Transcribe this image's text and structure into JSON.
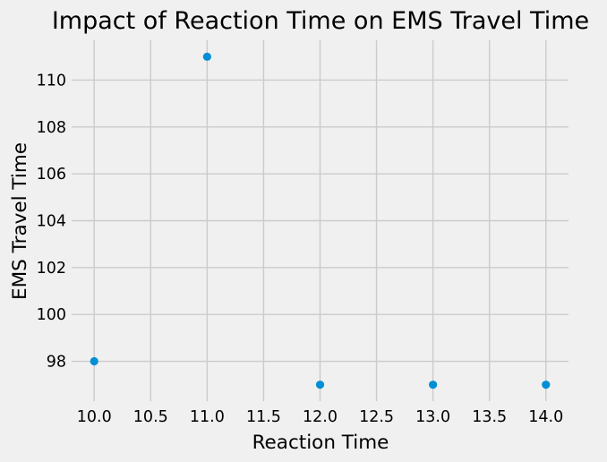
{
  "chart_data": {
    "type": "scatter",
    "title": "Impact of Reaction Time on EMS Travel Time",
    "xlabel": "Reaction Time",
    "ylabel": "EMS Travel Time",
    "x": [
      10,
      11,
      12,
      13,
      14
    ],
    "y": [
      98,
      111,
      97,
      97,
      97
    ],
    "xlim": [
      9.8,
      14.2
    ],
    "ylim": [
      96.3,
      111.7
    ],
    "xticks": [
      10.0,
      10.5,
      11.0,
      11.5,
      12.0,
      12.5,
      13.0,
      13.5,
      14.0
    ],
    "xtick_labels": [
      "10.0",
      "10.5",
      "11.0",
      "11.5",
      "12.0",
      "12.5",
      "13.0",
      "13.5",
      "14.0"
    ],
    "yticks": [
      98,
      100,
      102,
      104,
      106,
      108,
      110
    ],
    "ytick_labels": [
      "98",
      "100",
      "102",
      "104",
      "106",
      "108",
      "110"
    ],
    "grid": true,
    "legend": "none",
    "marker_color": "#008fd5",
    "background_color": "#f0f0f0",
    "grid_color": "#cbcbcb"
  }
}
